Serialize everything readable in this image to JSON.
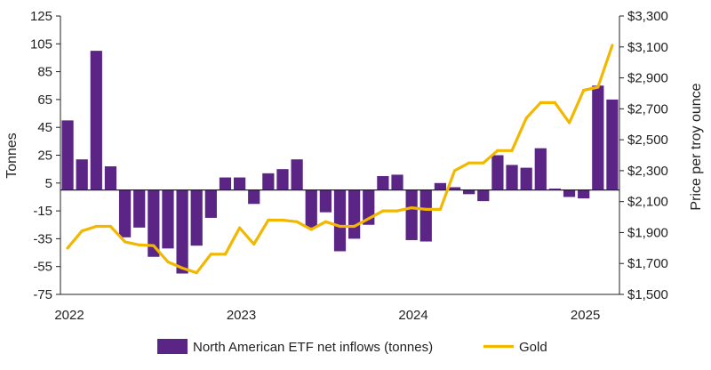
{
  "chart_data": {
    "type": "bar+line",
    "title": "",
    "x_labels": [
      "2022",
      "2023",
      "2024",
      "2025"
    ],
    "months": [
      "2022-01",
      "2022-02",
      "2022-03",
      "2022-04",
      "2022-05",
      "2022-06",
      "2022-07",
      "2022-08",
      "2022-09",
      "2022-10",
      "2022-11",
      "2022-12",
      "2023-01",
      "2023-02",
      "2023-03",
      "2023-04",
      "2023-05",
      "2023-06",
      "2023-07",
      "2023-08",
      "2023-09",
      "2023-10",
      "2023-11",
      "2023-12",
      "2024-01",
      "2024-02",
      "2024-03",
      "2024-04",
      "2024-05",
      "2024-06",
      "2024-07",
      "2024-08",
      "2024-09",
      "2024-10",
      "2024-11",
      "2024-12",
      "2025-01",
      "2025-02",
      "2025-03"
    ],
    "series": [
      {
        "name": "North American ETF net inflows (tonnes)",
        "type": "bar",
        "axis": "left",
        "color": "#5b2585",
        "values": [
          50,
          22,
          100,
          17,
          -34,
          -27,
          -48,
          -42,
          -60,
          -40,
          -20,
          9,
          9,
          -10,
          12,
          15,
          22,
          -27,
          -16,
          -44,
          -35,
          -25,
          10,
          11,
          -36,
          -37,
          5,
          2,
          -3,
          -8,
          25,
          18,
          16,
          30,
          1,
          -5,
          -6,
          75,
          65
        ]
      },
      {
        "name": "Gold",
        "type": "line",
        "axis": "right",
        "color": "#f2b800",
        "values": [
          1800,
          1910,
          1940,
          1940,
          1840,
          1820,
          1815,
          1710,
          1670,
          1640,
          1760,
          1760,
          1930,
          1825,
          1980,
          1980,
          1970,
          1920,
          1970,
          1940,
          1940,
          1990,
          2040,
          2040,
          2060,
          2050,
          2050,
          2300,
          2350,
          2350,
          2430,
          2430,
          2640,
          2740,
          2740,
          2610,
          2820,
          2840,
          3110
        ]
      }
    ],
    "y_left": {
      "label": "Tonnes",
      "ylim": [
        -75,
        125
      ],
      "ticks": [
        125,
        105,
        85,
        65,
        45,
        25,
        5,
        -15,
        -35,
        -55,
        -75
      ],
      "tick_labels": [
        "125",
        "105",
        "85",
        "65",
        "45",
        "25",
        "5",
        "-15",
        "-35",
        "-55",
        "-75"
      ]
    },
    "y_right": {
      "label": "Price per troy ounce",
      "ylim": [
        1500,
        3300
      ],
      "ticks": [
        3300,
        3100,
        2900,
        2700,
        2500,
        2300,
        2100,
        1900,
        1700,
        1500
      ],
      "tick_labels": [
        "$3,300",
        "$3,100",
        "$2,900",
        "$2,700",
        "$2,500",
        "$2,300",
        "$2,100",
        "$1,900",
        "$1,700",
        "$1,500"
      ]
    },
    "legend": [
      {
        "label": "North American ETF net inflows (tonnes)",
        "kind": "box",
        "color": "#5b2585"
      },
      {
        "label": "Gold",
        "kind": "line",
        "color": "#f2b800"
      }
    ],
    "legend_position": "bottom-center",
    "grid": false
  }
}
